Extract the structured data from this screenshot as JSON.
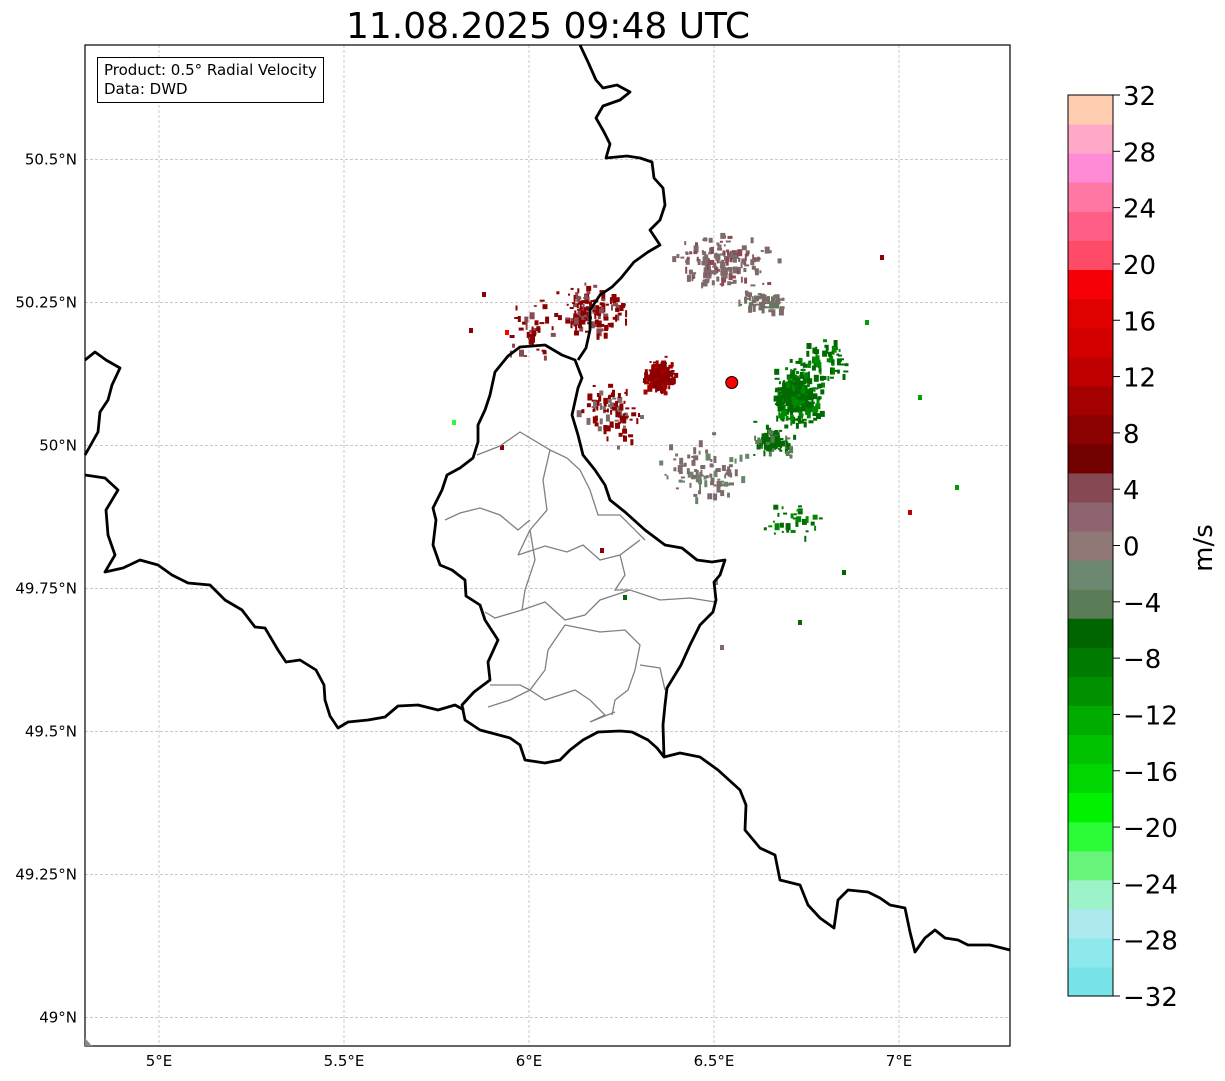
{
  "title": "11.08.2025 09:48 UTC",
  "info": {
    "product": "Product: 0.5° Radial Velocity",
    "data": "Data: DWD"
  },
  "map": {
    "lon_range": [
      4.8,
      7.3
    ],
    "lat_range": [
      48.95,
      50.7
    ],
    "x_ticks": [
      "5°E",
      "5.5°E",
      "6°E",
      "6.5°E",
      "7°E"
    ],
    "y_ticks": [
      "49°N",
      "49.25°N",
      "49.5°N",
      "49.75°N",
      "50°N",
      "50.25°N",
      "50.5°N"
    ],
    "gridlines": true,
    "radar_site": {
      "lon": 6.548,
      "lat": 50.11,
      "marker_color": "#ff0000"
    }
  },
  "colorbar": {
    "label": "m/s",
    "range": [
      -32,
      32
    ],
    "tick_labels": [
      "32",
      "28",
      "24",
      "20",
      "16",
      "12",
      "8",
      "4",
      "0",
      "−4",
      "−8",
      "−12",
      "−16",
      "−20",
      "−24",
      "−28",
      "−32"
    ],
    "colors_bottom_to_top": [
      "#78e4e8",
      "#8de9ec",
      "#ade9ee",
      "#9cf3c9",
      "#66f47b",
      "#2cfb38",
      "#00f200",
      "#00d600",
      "#00c200",
      "#00ab00",
      "#009000",
      "#007a00",
      "#006500",
      "#5a7d58",
      "#6d8870",
      "#8f7876",
      "#8e6470",
      "#864852",
      "#720000",
      "#8b0000",
      "#a50000",
      "#c00000",
      "#d40000",
      "#e10000",
      "#f70008",
      "#ff4a68",
      "#ff5f86",
      "#ff78a4",
      "#ff8ad6",
      "#ffa8c8",
      "#ffceb0"
    ]
  },
  "velocity_colors": {
    "outbound": "#8b0000",
    "near_zero": "#7e6a6a",
    "inbound": "#006a00"
  }
}
